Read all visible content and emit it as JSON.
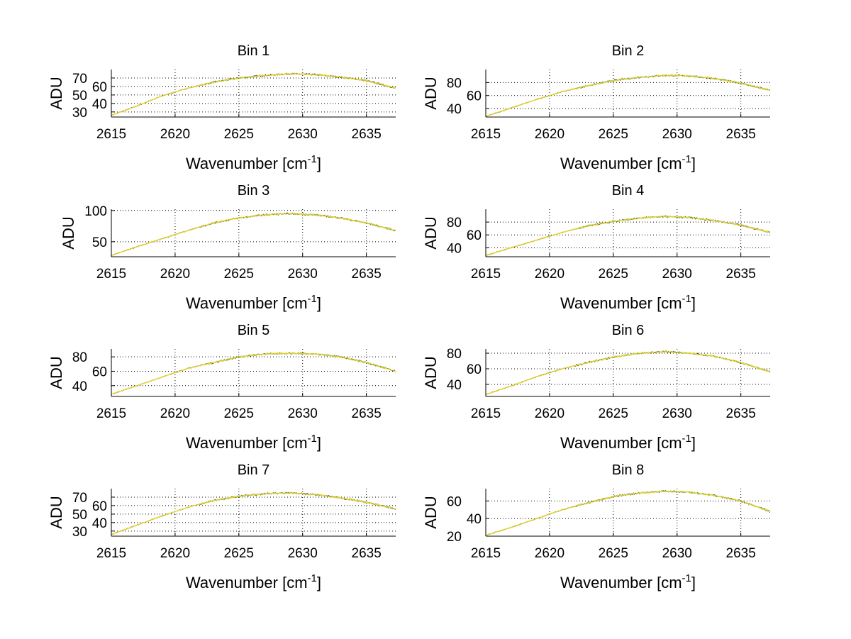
{
  "chart_data": [
    {
      "type": "line",
      "title": "Bin 1",
      "xlabel": "Wavenumber [cm-1]",
      "ylabel": "ADU",
      "xlim": [
        2615,
        2637.3
      ],
      "ylim": [
        24,
        80
      ],
      "xticks": [
        2615,
        2620,
        2625,
        2630,
        2635
      ],
      "yticks": [
        30,
        40,
        50,
        60,
        70
      ],
      "grid": true,
      "x": [
        2615,
        2617,
        2619,
        2621,
        2623,
        2625,
        2627,
        2629,
        2631,
        2633,
        2635,
        2637.3
      ],
      "y": [
        26,
        37,
        49,
        58,
        65,
        70,
        73,
        75,
        74,
        71,
        67,
        58
      ]
    },
    {
      "type": "line",
      "title": "Bin 2",
      "xlabel": "Wavenumber [cm-1]",
      "ylabel": "ADU",
      "xlim": [
        2615,
        2637.3
      ],
      "ylim": [
        27,
        100
      ],
      "xticks": [
        2615,
        2620,
        2625,
        2630,
        2635
      ],
      "yticks": [
        40,
        60,
        80
      ],
      "grid": true,
      "x": [
        2615,
        2617,
        2619,
        2621,
        2623,
        2625,
        2627,
        2629,
        2631,
        2633,
        2635,
        2637.3
      ],
      "y": [
        28,
        41,
        54,
        66,
        75,
        83,
        88,
        91,
        90,
        86,
        79,
        68
      ]
    },
    {
      "type": "line",
      "title": "Bin 3",
      "xlabel": "Wavenumber [cm-1]",
      "ylabel": "ADU",
      "xlim": [
        2615,
        2637.3
      ],
      "ylim": [
        26,
        102
      ],
      "xticks": [
        2615,
        2620,
        2625,
        2630,
        2635
      ],
      "yticks": [
        50,
        100
      ],
      "grid": true,
      "x": [
        2615,
        2617,
        2619,
        2621,
        2623,
        2625,
        2627,
        2629,
        2631,
        2633,
        2635,
        2637.3
      ],
      "y": [
        28,
        42,
        55,
        68,
        80,
        88,
        93,
        95,
        93,
        88,
        80,
        68
      ]
    },
    {
      "type": "line",
      "title": "Bin 4",
      "xlabel": "Wavenumber [cm-1]",
      "ylabel": "ADU",
      "xlim": [
        2615,
        2637.3
      ],
      "ylim": [
        26,
        100
      ],
      "xticks": [
        2615,
        2620,
        2625,
        2630,
        2635
      ],
      "yticks": [
        40,
        60,
        80
      ],
      "grid": true,
      "x": [
        2615,
        2617,
        2619,
        2621,
        2623,
        2625,
        2627,
        2629,
        2631,
        2633,
        2635,
        2637.3
      ],
      "y": [
        28,
        40,
        52,
        64,
        74,
        81,
        86,
        89,
        87,
        82,
        75,
        64
      ]
    },
    {
      "type": "line",
      "title": "Bin 5",
      "xlabel": "Wavenumber [cm-1]",
      "ylabel": "ADU",
      "xlim": [
        2615,
        2637.3
      ],
      "ylim": [
        25,
        91
      ],
      "xticks": [
        2615,
        2620,
        2625,
        2630,
        2635
      ],
      "yticks": [
        40,
        60,
        80
      ],
      "grid": true,
      "x": [
        2615,
        2617,
        2619,
        2621,
        2623,
        2625,
        2627,
        2629,
        2631,
        2633,
        2635,
        2637.3
      ],
      "y": [
        28,
        40,
        52,
        64,
        72,
        80,
        84,
        85,
        84,
        80,
        72,
        60
      ]
    },
    {
      "type": "line",
      "title": "Bin 6",
      "xlabel": "Wavenumber [cm-1]",
      "ylabel": "ADU",
      "xlim": [
        2615,
        2637.3
      ],
      "ylim": [
        24.5,
        85.5
      ],
      "xticks": [
        2615,
        2620,
        2625,
        2630,
        2635
      ],
      "yticks": [
        40,
        60,
        80
      ],
      "grid": true,
      "x": [
        2615,
        2617,
        2619,
        2621,
        2623,
        2625,
        2627,
        2629,
        2631,
        2633,
        2635,
        2637.3
      ],
      "y": [
        27,
        38,
        50,
        60,
        68,
        75,
        80,
        82,
        80,
        76,
        68,
        56
      ]
    },
    {
      "type": "line",
      "title": "Bin 7",
      "xlabel": "Wavenumber [cm-1]",
      "ylabel": "ADU",
      "xlim": [
        2615,
        2637.3
      ],
      "ylim": [
        24,
        80
      ],
      "xticks": [
        2615,
        2620,
        2625,
        2630,
        2635
      ],
      "yticks": [
        30,
        40,
        50,
        60,
        70
      ],
      "grid": true,
      "x": [
        2615,
        2617,
        2619,
        2621,
        2623,
        2625,
        2627,
        2629,
        2631,
        2633,
        2635,
        2637.3
      ],
      "y": [
        26,
        37,
        48,
        58,
        66,
        71,
        74,
        75,
        73,
        69,
        64,
        56
      ]
    },
    {
      "type": "line",
      "title": "Bin 8",
      "xlabel": "Wavenumber [cm-1]",
      "ylabel": "ADU",
      "xlim": [
        2615,
        2637.3
      ],
      "ylim": [
        20,
        74
      ],
      "xticks": [
        2615,
        2620,
        2625,
        2630,
        2635
      ],
      "yticks": [
        20,
        40,
        60
      ],
      "grid": true,
      "x": [
        2615,
        2617,
        2619,
        2621,
        2623,
        2625,
        2627,
        2629,
        2631,
        2633,
        2635,
        2637.3
      ],
      "y": [
        21,
        30,
        40,
        50,
        58,
        65,
        69,
        71,
        70,
        66,
        60,
        48
      ]
    }
  ],
  "colors": {
    "main": "#f2d21a",
    "secondary": "#5fbf6a",
    "noise": "#222222"
  }
}
